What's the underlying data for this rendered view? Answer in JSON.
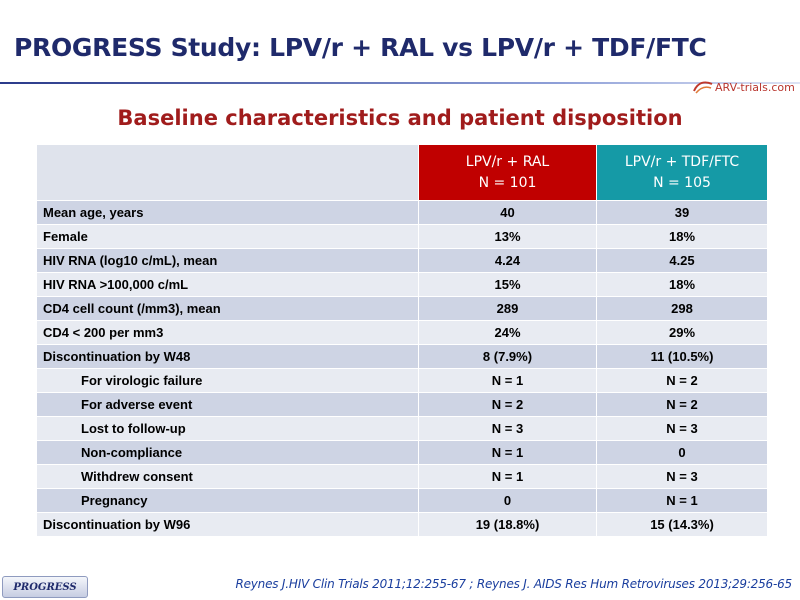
{
  "title": "PROGRESS Study: LPV/r + RAL vs LPV/r + TDF/FTC",
  "logo_text": "ARV-trials.com",
  "subtitle": "Baseline characteristics and patient disposition",
  "colors": {
    "title": "#1f2a6b",
    "subtitle": "#a01c1c",
    "arm1": "#c00000",
    "arm2": "#159aa6"
  },
  "table": {
    "arms": [
      {
        "name": "LPV/r + RAL",
        "n": "N = 101"
      },
      {
        "name": "LPV/r + TDF/FTC",
        "n": "N = 105"
      }
    ],
    "rows": [
      {
        "label": "Mean age, years",
        "v1": "40",
        "v2": "39"
      },
      {
        "label": "Female",
        "v1": "13%",
        "v2": "18%"
      },
      {
        "label": "HIV RNA (log10 c/mL), mean",
        "v1": "4.24",
        "v2": "4.25"
      },
      {
        "label": "HIV RNA >100,000 c/mL",
        "v1": "15%",
        "v2": "18%"
      },
      {
        "label": "CD4 cell count (/mm3), mean",
        "v1": "289",
        "v2": "298"
      },
      {
        "label": "CD4 < 200 per mm3",
        "v1": "24%",
        "v2": "29%"
      },
      {
        "label": "Discontinuation by W48",
        "v1": "8 (7.9%)",
        "v2": "11 (10.5%)"
      },
      {
        "label": "For virologic failure",
        "v1": "N = 1",
        "v2": "N = 2"
      },
      {
        "label": "For adverse event",
        "v1": "N = 2",
        "v2": "N = 2"
      },
      {
        "label": "Lost to follow-up",
        "v1": "N = 3",
        "v2": "N = 3"
      },
      {
        "label": "Non-compliance",
        "v1": "N = 1",
        "v2": "0"
      },
      {
        "label": "Withdrew consent",
        "v1": "N = 1",
        "v2": "N = 3"
      },
      {
        "label": "Pregnancy",
        "v1": "0",
        "v2": "N = 1"
      },
      {
        "label": "Discontinuation by W96",
        "v1": "19 (18.8%)",
        "v2": "15 (14.3%)"
      }
    ]
  },
  "footer": {
    "badge": "PROGRESS",
    "citation": "Reynes J.HIV Clin Trials 2011;12:255-67 ; Reynes J. AIDS Res Hum Retroviruses 2013;29:256-65"
  }
}
